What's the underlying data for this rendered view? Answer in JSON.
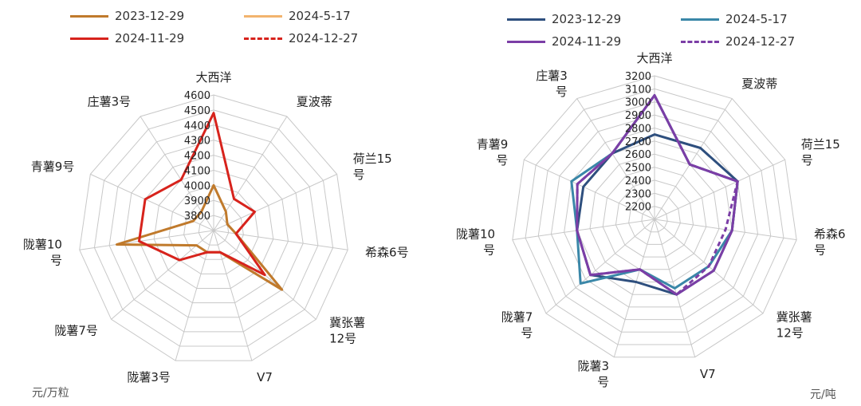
{
  "chart_data": [
    {
      "type": "radar",
      "unit": "元/万粒",
      "categories": [
        "大西洋",
        "夏波蒂",
        "荷兰15号",
        "希森6号",
        "冀张薯12号",
        "V7",
        "陇薯3号",
        "陇薯7号",
        "陇薯10号",
        "青薯9号",
        "庄薯3号"
      ],
      "category_lines": [
        [
          "大西洋"
        ],
        [
          "夏波蒂"
        ],
        [
          "荷兰15",
          "号"
        ],
        [
          "希森6号"
        ],
        [
          "冀张薯",
          "12号"
        ],
        [
          "V7"
        ],
        [
          "陇薯3号"
        ],
        [
          "陇薯7号"
        ],
        [
          "陇薯10",
          "号"
        ],
        [
          "青薯9号"
        ],
        [
          "庄薯3号"
        ]
      ],
      "rmin": 3700,
      "rmax": 4600,
      "ticks": [
        3800,
        3900,
        4000,
        4100,
        4200,
        4300,
        4400,
        4500,
        4600
      ],
      "series": [
        {
          "name": "2023-12-29",
          "color": "#c07a2c",
          "dash": "none",
          "values": [
            4000,
            3850,
            3800,
            3850,
            4300,
            3850,
            3850,
            3850,
            4350,
            3850,
            3850
          ]
        },
        {
          "name": "2024-5-17",
          "color": "#f2b46e",
          "dash": "none",
          "values": [
            null,
            null,
            null,
            null,
            null,
            null,
            null,
            null,
            null,
            null,
            null
          ]
        },
        {
          "name": "2024-11-29",
          "color": "#d7231c",
          "dash": "none",
          "values": [
            4480,
            3950,
            4000,
            3850,
            4150,
            3850,
            3850,
            4000,
            4200,
            4200,
            4100
          ]
        },
        {
          "name": "2024-12-27",
          "color": "#d7231c",
          "dash": "6,4",
          "values": [
            null,
            null,
            null,
            null,
            null,
            null,
            null,
            null,
            null,
            null,
            null
          ]
        }
      ]
    },
    {
      "type": "radar",
      "unit": "元/吨",
      "categories": [
        "大西洋",
        "夏波蒂",
        "荷兰15号",
        "希森6号",
        "冀张薯12号",
        "V7",
        "陇薯3号",
        "陇薯7号",
        "陇薯10号",
        "青薯9号",
        "庄薯3号"
      ],
      "category_lines": [
        [
          "大西洋"
        ],
        [
          "夏波蒂"
        ],
        [
          "荷兰15",
          "号"
        ],
        [
          "希森6",
          "号"
        ],
        [
          "冀张薯",
          "12号"
        ],
        [
          "V7"
        ],
        [
          "陇薯3",
          "号"
        ],
        [
          "陇薯7",
          "号"
        ],
        [
          "陇薯10",
          "号"
        ],
        [
          "青薯9",
          "号"
        ],
        [
          "庄薯3",
          "号"
        ]
      ],
      "rmin": 2100,
      "rmax": 3200,
      "ticks": [
        2200,
        2300,
        2400,
        2500,
        2600,
        2700,
        2800,
        2900,
        3000,
        3100,
        3200
      ],
      "series": [
        {
          "name": "2023-12-29",
          "color": "#2e4f7e",
          "dash": "none",
          "values": [
            2750,
            2750,
            2800,
            2700,
            2700,
            2700,
            2600,
            2750,
            2700,
            2700,
            2700
          ]
        },
        {
          "name": "2024-5-17",
          "color": "#3a87a8",
          "dash": "none",
          "values": [
            3050,
            2600,
            2800,
            2700,
            2650,
            2650,
            2500,
            2850,
            2700,
            2800,
            2700
          ]
        },
        {
          "name": "2024-11-29",
          "color": "#7b3ea6",
          "dash": "none",
          "values": [
            3050,
            2600,
            2800,
            2700,
            2700,
            2700,
            2500,
            2750,
            2700,
            2750,
            2700
          ]
        },
        {
          "name": "2024-12-27",
          "color": "#7b3ea6",
          "dash": "6,4",
          "values": [
            3050,
            2600,
            2800,
            2650,
            2650,
            2700,
            2500,
            2750,
            2700,
            2750,
            2700
          ]
        }
      ]
    }
  ]
}
